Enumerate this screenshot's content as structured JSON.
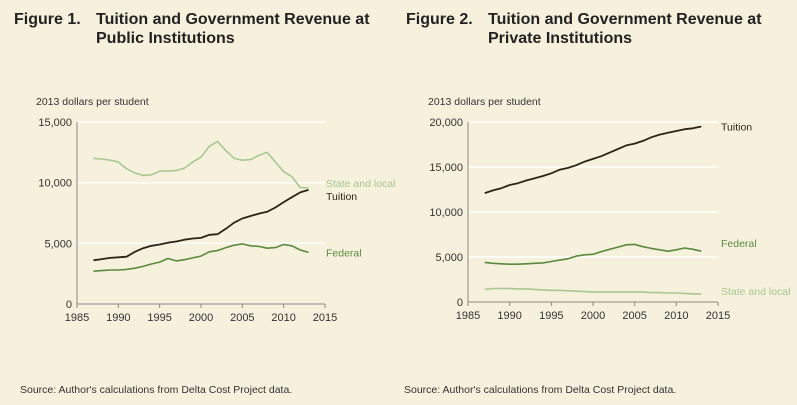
{
  "figures": [
    {
      "title_num": "Figure 1.",
      "title_line1": "Tuition and Government Revenue at",
      "title_line2": "Public Institutions",
      "unit_label": "2013 dollars per student",
      "source": "Source: Author's calculations from Delta Cost Project data."
    },
    {
      "title_num": "Figure 2.",
      "title_line1": "Tuition and Government Revenue at",
      "title_line2": "Private Institutions",
      "unit_label": "2013 dollars per student",
      "source": "Source: Author's calculations from Delta Cost Project data."
    }
  ],
  "colors": {
    "background": "#f6f1dd",
    "tuition": "#2e2416",
    "federal": "#5b8a3c",
    "state_local": "#a9c790",
    "grid": "#ffffff",
    "axis": "#888888"
  },
  "chart_data": [
    {
      "type": "line",
      "title": "Tuition and Government Revenue at Public Institutions",
      "ylabel": "2013 dollars per student",
      "xlim": [
        1985,
        2015
      ],
      "ylim": [
        0,
        15000
      ],
      "xticks": [
        1985,
        1990,
        1995,
        2000,
        2005,
        2010,
        2015
      ],
      "xtick_labels": [
        "1985",
        "1990",
        "1995",
        "2000",
        "2005",
        "2010",
        "2015"
      ],
      "yticks": [
        0,
        5000,
        10000,
        15000
      ],
      "ytick_labels": [
        "0",
        "5,000",
        "10,000",
        "15,000"
      ],
      "grid": true,
      "x": [
        1987,
        1988,
        1989,
        1990,
        1991,
        1992,
        1993,
        1994,
        1995,
        1996,
        1997,
        1998,
        1999,
        2000,
        2001,
        2002,
        2003,
        2004,
        2005,
        2006,
        2007,
        2008,
        2009,
        2010,
        2011,
        2012,
        2013
      ],
      "series": [
        {
          "name": "State and local",
          "color_key": "state_local",
          "values": [
            12000,
            11950,
            11850,
            11700,
            11150,
            10800,
            10600,
            10650,
            10950,
            10950,
            11000,
            11200,
            11700,
            12100,
            13000,
            13400,
            12650,
            12000,
            11850,
            11900,
            12250,
            12500,
            11700,
            10900,
            10500,
            9600,
            9550
          ]
        },
        {
          "name": "Tuition",
          "color_key": "tuition",
          "values": [
            3600,
            3700,
            3800,
            3850,
            3900,
            4300,
            4600,
            4800,
            4900,
            5050,
            5150,
            5300,
            5400,
            5450,
            5700,
            5750,
            6200,
            6700,
            7050,
            7250,
            7450,
            7600,
            7950,
            8400,
            8800,
            9200,
            9400
          ]
        },
        {
          "name": "Federal",
          "color_key": "federal",
          "values": [
            2700,
            2750,
            2800,
            2800,
            2850,
            2950,
            3100,
            3300,
            3450,
            3750,
            3550,
            3650,
            3800,
            3950,
            4300,
            4400,
            4650,
            4850,
            4950,
            4800,
            4750,
            4600,
            4650,
            4900,
            4800,
            4450,
            4250
          ]
        }
      ]
    },
    {
      "type": "line",
      "title": "Tuition and Government Revenue at Private Institutions",
      "ylabel": "2013 dollars per student",
      "xlim": [
        1985,
        2015
      ],
      "ylim": [
        0,
        20000
      ],
      "xticks": [
        1985,
        1990,
        1995,
        2000,
        2005,
        2010,
        2015
      ],
      "xtick_labels": [
        "1985",
        "1990",
        "1995",
        "2000",
        "2005",
        "2010",
        "2015"
      ],
      "yticks": [
        0,
        5000,
        10000,
        15000,
        20000
      ],
      "ytick_labels": [
        "0",
        "5,000",
        "10,000",
        "15,000",
        "20,000"
      ],
      "grid": true,
      "x": [
        1987,
        1988,
        1989,
        1990,
        1991,
        1992,
        1993,
        1994,
        1995,
        1996,
        1997,
        1998,
        1999,
        2000,
        2001,
        2002,
        2003,
        2004,
        2005,
        2006,
        2007,
        2008,
        2009,
        2010,
        2011,
        2012,
        2013
      ],
      "series": [
        {
          "name": "Tuition",
          "color_key": "tuition",
          "values": [
            12100,
            12400,
            12650,
            13000,
            13200,
            13500,
            13750,
            14000,
            14300,
            14700,
            14900,
            15200,
            15600,
            15900,
            16200,
            16600,
            17000,
            17400,
            17600,
            17900,
            18300,
            18600,
            18800,
            19000,
            19200,
            19300,
            19500
          ]
        },
        {
          "name": "Federal",
          "color_key": "federal",
          "values": [
            4400,
            4300,
            4250,
            4200,
            4200,
            4250,
            4300,
            4350,
            4500,
            4650,
            4800,
            5100,
            5250,
            5300,
            5600,
            5850,
            6100,
            6350,
            6400,
            6150,
            5950,
            5800,
            5650,
            5800,
            6000,
            5850,
            5650
          ]
        },
        {
          "name": "State and local",
          "color_key": "state_local",
          "values": [
            1400,
            1500,
            1500,
            1500,
            1450,
            1450,
            1400,
            1350,
            1300,
            1300,
            1250,
            1200,
            1150,
            1100,
            1100,
            1100,
            1100,
            1100,
            1100,
            1100,
            1050,
            1050,
            1000,
            1000,
            950,
            900,
            900
          ]
        }
      ]
    }
  ]
}
